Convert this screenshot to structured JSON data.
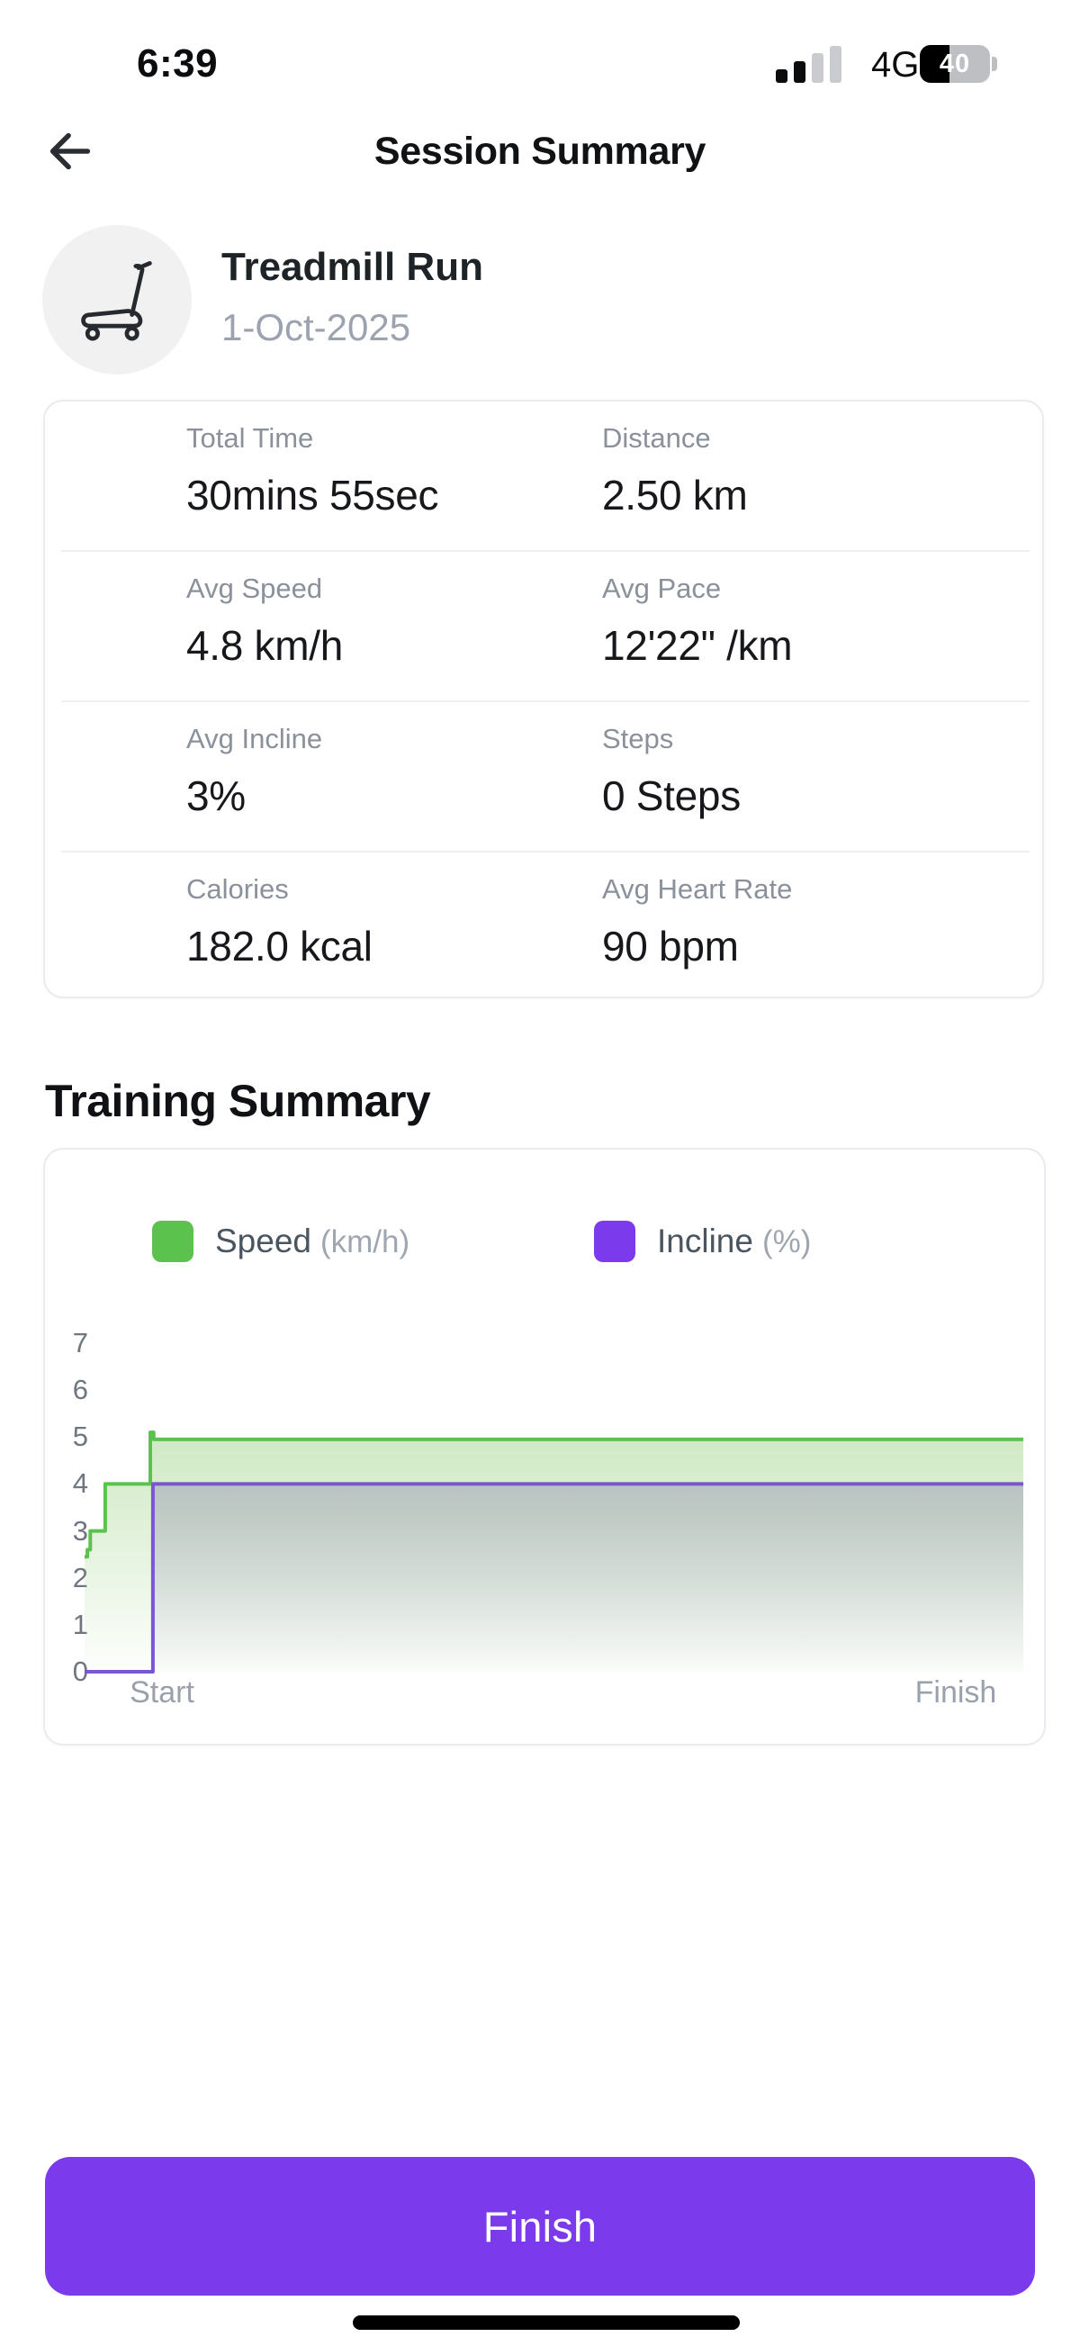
{
  "status_bar": {
    "time": "6:39",
    "network": "4G",
    "battery_percent": "40",
    "signal": {
      "bars": 4,
      "filled": 2
    }
  },
  "header": {
    "title": "Session Summary"
  },
  "session": {
    "activity": "Treadmill Run",
    "date": "1-Oct-2025",
    "icon": "treadmill"
  },
  "stats": {
    "items": [
      {
        "label": "Total Time",
        "value": "30mins 55sec"
      },
      {
        "label": "Distance",
        "value": "2.50 km"
      },
      {
        "label": "Avg Speed",
        "value": "4.8 km/h"
      },
      {
        "label": "Avg Pace",
        "value": "12'22\" /km"
      },
      {
        "label": "Avg Incline",
        "value": "3%"
      },
      {
        "label": "Steps",
        "value": "0 Steps"
      },
      {
        "label": "Calories",
        "value": "182.0 kcal"
      },
      {
        "label": "Avg Heart Rate",
        "value": "90 bpm"
      }
    ]
  },
  "training": {
    "heading": "Training Summary",
    "legend": [
      {
        "label": "Speed",
        "unit": "(km/h)",
        "color": "#5CC24E"
      },
      {
        "label": "Incline",
        "unit": "(%)",
        "color": "#7C3AED"
      }
    ]
  },
  "chart_data": {
    "type": "area",
    "title": "Training Summary",
    "x_axis": {
      "labels": [
        "Start",
        "Finish"
      ],
      "grid": false
    },
    "y_axis": {
      "min": 0,
      "max": 7,
      "ticks": [
        0,
        1,
        2,
        3,
        4,
        5,
        6,
        7
      ],
      "grid": false
    },
    "legend_position": "top",
    "series": [
      {
        "name": "Speed",
        "unit": "km/h",
        "color": "#5CC24E",
        "fill_top": "rgba(134,200,105,0.40)",
        "fill_bottom": "rgba(134,200,105,0.02)",
        "points": [
          [
            0,
            2.45
          ],
          [
            0.003,
            2.45
          ],
          [
            0.003,
            2.6
          ],
          [
            0.006,
            2.6
          ],
          [
            0.006,
            3
          ],
          [
            0.022,
            3
          ],
          [
            0.022,
            4
          ],
          [
            0.07,
            4
          ],
          [
            0.07,
            5.1
          ],
          [
            0.0735,
            5.1
          ],
          [
            0.0735,
            4.95
          ],
          [
            1,
            4.95
          ]
        ]
      },
      {
        "name": "Incline",
        "unit": "%",
        "color": "#7C55D6",
        "fill_top": "rgba(158,158,178,0.55)",
        "fill_bottom": "rgba(158,158,178,0.02)",
        "points": [
          [
            0,
            0
          ],
          [
            0.0728,
            0
          ],
          [
            0.0728,
            4
          ],
          [
            1,
            4
          ]
        ]
      }
    ]
  },
  "footer": {
    "finish_label": "Finish"
  },
  "colors": {
    "accent_purple": "#7C3AED",
    "speed_green": "#5CC24E",
    "text_dark": "#16181B",
    "text_gray": "#8A919B",
    "card_border": "#E9EBEF"
  }
}
